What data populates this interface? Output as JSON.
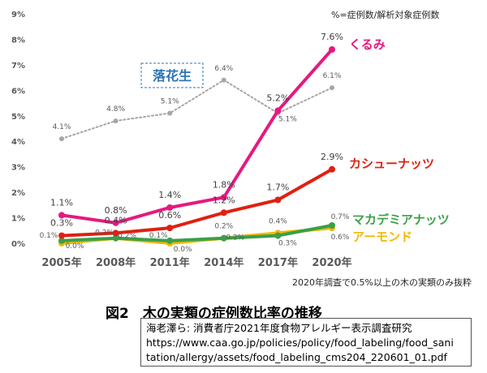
{
  "chart_data": {
    "type": "line",
    "unit_note": "%=症例数/解析対象症例数",
    "footnote": "2020年調査で0.5%以上の木の実類のみ抜粋",
    "categories": [
      "2005年",
      "2008年",
      "2011年",
      "2014年",
      "2017年",
      "2020年"
    ],
    "y_ticks": [
      "0%",
      "1%",
      "2%",
      "3%",
      "4%",
      "5%",
      "6%",
      "7%",
      "8%",
      "9%"
    ],
    "ylim": [
      0,
      9
    ],
    "grid": false,
    "series": [
      {
        "name": "落花生",
        "color": "#a6a6a6",
        "dashed": true,
        "values": [
          4.1,
          4.8,
          5.1,
          6.4,
          5.1,
          6.1
        ],
        "labels": [
          "4.1%",
          "4.8%",
          "5.1%",
          "6.4%",
          "5.1%",
          "6.1%"
        ]
      },
      {
        "name": "くるみ",
        "color": "#e6197f",
        "values": [
          1.1,
          0.8,
          1.4,
          1.8,
          5.2,
          7.6
        ],
        "labels": [
          "1.1%",
          "0.8%",
          "1.4%",
          "1.8%",
          "5.2%",
          "7.6%"
        ]
      },
      {
        "name": "カシューナッツ",
        "color": "#e02010",
        "values": [
          0.3,
          0.4,
          0.6,
          1.2,
          1.7,
          2.9
        ],
        "labels": [
          "0.3%",
          "0.4%",
          "0.6%",
          "1.2%",
          "1.7%",
          "2.9%"
        ]
      },
      {
        "name": "マカデミアナッツ",
        "color": "#3aa04a",
        "values": [
          0.1,
          0.2,
          0.1,
          0.2,
          0.3,
          0.7
        ],
        "labels": [
          "0.1%",
          "0.2%",
          "0.1%",
          "0.2%",
          "0.3%",
          "0.7%"
        ]
      },
      {
        "name": "アーモンド",
        "color": "#f2b800",
        "values": [
          0.0,
          0.2,
          0.0,
          0.2,
          0.4,
          0.6
        ],
        "labels": [
          "0.0%",
          "0.2%",
          "0.0%",
          "0.2%",
          "0.4%",
          "0.6%"
        ]
      }
    ]
  },
  "figure": {
    "title": "図2　木の実類の症例数比率の推移"
  },
  "citation": {
    "line1": "海老澤ら: 消費者庁2021年度食物アレルギー表示調査研究",
    "line2": "https://www.caa.go.jp/policies/policy/food_labeling/food_sani",
    "line3": "tation/allergy/assets/food_labeling_cms204_220601_01.pdf"
  }
}
